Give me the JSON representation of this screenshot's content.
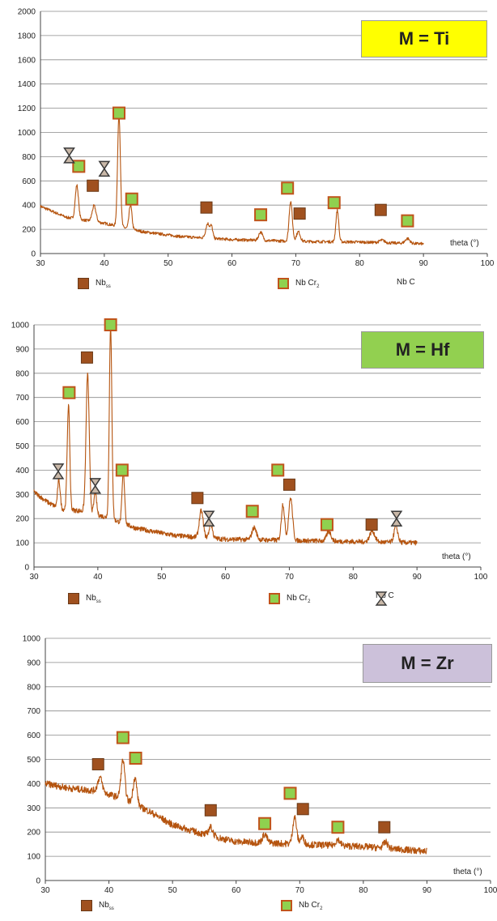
{
  "colors": {
    "trace": "#b5540f",
    "nb_square": "#a0511f",
    "nbcr2_fill": "#8fd14f",
    "nbcr2_border": "#c0541b",
    "nbc_marker": "#3a3a3a"
  },
  "legend_labels": {
    "nb": "Nb",
    "nb_sub": "ss",
    "nbcr2": "Nb Cr",
    "nbcr2_sub": "2",
    "nbc": "Nb C"
  },
  "chart_data": [
    {
      "type": "line",
      "tag": "M = Ti",
      "tag_color": "#ffff00",
      "xlabel": "theta (°)",
      "xlim": [
        30,
        100
      ],
      "ylim": [
        0,
        2000
      ],
      "xticks": [
        30,
        40,
        50,
        60,
        70,
        80,
        90,
        100
      ],
      "yticks": [
        0,
        200,
        400,
        600,
        800,
        1000,
        1200,
        1400,
        1600,
        1800,
        2000
      ],
      "series": [
        {
          "start": 30,
          "end": 90,
          "noise": 12,
          "baseline": [
            [
              30,
              390
            ],
            [
              34,
              300
            ],
            [
              40,
              250
            ],
            [
              46,
              180
            ],
            [
              52,
              140
            ],
            [
              60,
              115
            ],
            [
              70,
              100
            ],
            [
              80,
              95
            ],
            [
              90,
              80
            ]
          ],
          "peaks": [
            [
              35.7,
              280,
              0.25
            ],
            [
              38.4,
              130,
              0.3
            ],
            [
              42.3,
              920,
              0.22
            ],
            [
              44.1,
              200,
              0.22
            ],
            [
              56.2,
              120,
              0.3
            ],
            [
              56.8,
              90,
              0.2
            ],
            [
              64.5,
              70,
              0.3
            ],
            [
              69.2,
              330,
              0.25
            ],
            [
              70.4,
              80,
              0.3
            ],
            [
              76.5,
              260,
              0.22
            ],
            [
              83.5,
              20,
              0.4
            ],
            [
              87.5,
              40,
              0.35
            ]
          ]
        }
      ],
      "markers": [
        {
          "phase": "nbcr2",
          "x": 42.3,
          "y": 1160
        },
        {
          "phase": "nbcr2",
          "x": 36.0,
          "y": 720
        },
        {
          "phase": "nbcr2",
          "x": 44.3,
          "y": 450
        },
        {
          "phase": "nbcr2",
          "x": 64.5,
          "y": 320
        },
        {
          "phase": "nbcr2",
          "x": 68.7,
          "y": 540
        },
        {
          "phase": "nbcr2",
          "x": 76.0,
          "y": 420
        },
        {
          "phase": "nbcr2",
          "x": 87.5,
          "y": 270
        },
        {
          "phase": "nb",
          "x": 38.2,
          "y": 560
        },
        {
          "phase": "nb",
          "x": 56.0,
          "y": 380
        },
        {
          "phase": "nb",
          "x": 70.6,
          "y": 330
        },
        {
          "phase": "nb",
          "x": 83.3,
          "y": 360
        },
        {
          "phase": "nbc",
          "x": 34.5,
          "y": 810
        },
        {
          "phase": "nbc",
          "x": 40.0,
          "y": 700
        }
      ]
    },
    {
      "type": "line",
      "tag": "M = Hf",
      "tag_color": "#92d050",
      "xlabel": "theta (°)",
      "xlim": [
        30,
        100
      ],
      "ylim": [
        0,
        1000
      ],
      "xticks": [
        30,
        40,
        50,
        60,
        70,
        80,
        90,
        100
      ],
      "yticks": [
        0,
        100,
        200,
        300,
        400,
        500,
        600,
        700,
        800,
        900,
        1000
      ],
      "series": [
        {
          "start": 30,
          "end": 90,
          "noise": 10,
          "baseline": [
            [
              30,
              310
            ],
            [
              32,
              270
            ],
            [
              34,
              240
            ],
            [
              38,
              230
            ],
            [
              42,
              200
            ],
            [
              46,
              160
            ],
            [
              52,
              130
            ],
            [
              60,
              115
            ],
            [
              70,
              110
            ],
            [
              80,
              105
            ],
            [
              90,
              100
            ]
          ],
          "peaks": [
            [
              33.9,
              120,
              0.2
            ],
            [
              35.4,
              430,
              0.2
            ],
            [
              38.4,
              570,
              0.25
            ],
            [
              39.6,
              90,
              0.2
            ],
            [
              42.0,
              790,
              0.2
            ],
            [
              44.0,
              210,
              0.2
            ],
            [
              56.2,
              110,
              0.3
            ],
            [
              57.7,
              60,
              0.25
            ],
            [
              64.5,
              50,
              0.35
            ],
            [
              69.0,
              150,
              0.25
            ],
            [
              70.2,
              175,
              0.3
            ],
            [
              76.2,
              40,
              0.35
            ],
            [
              83.0,
              45,
              0.4
            ],
            [
              86.7,
              65,
              0.3
            ]
          ]
        }
      ],
      "markers": [
        {
          "phase": "nbcr2",
          "x": 42.0,
          "y": 1000
        },
        {
          "phase": "nbcr2",
          "x": 35.5,
          "y": 720
        },
        {
          "phase": "nbcr2",
          "x": 43.8,
          "y": 400
        },
        {
          "phase": "nbcr2",
          "x": 64.2,
          "y": 230
        },
        {
          "phase": "nbcr2",
          "x": 68.2,
          "y": 400
        },
        {
          "phase": "nbcr2",
          "x": 75.9,
          "y": 175
        },
        {
          "phase": "nb",
          "x": 38.3,
          "y": 865
        },
        {
          "phase": "nb",
          "x": 55.6,
          "y": 285
        },
        {
          "phase": "nb",
          "x": 70.0,
          "y": 340
        },
        {
          "phase": "nb",
          "x": 82.9,
          "y": 175
        },
        {
          "phase": "nbc",
          "x": 33.8,
          "y": 395
        },
        {
          "phase": "nbc",
          "x": 39.6,
          "y": 335
        },
        {
          "phase": "nbc",
          "x": 57.4,
          "y": 200
        },
        {
          "phase": "nbc",
          "x": 86.8,
          "y": 200
        }
      ]
    },
    {
      "type": "line",
      "tag": "M = Zr",
      "tag_color": "#ccc1da",
      "xlabel": "theta (°)",
      "xlim": [
        30,
        100
      ],
      "ylim": [
        0,
        1000
      ],
      "xticks": [
        30,
        40,
        50,
        60,
        70,
        80,
        90,
        100
      ],
      "yticks": [
        0,
        100,
        200,
        300,
        400,
        500,
        600,
        700,
        800,
        900,
        1000
      ],
      "series": [
        {
          "start": 30,
          "end": 90,
          "noise": 14,
          "baseline": [
            [
              30,
              400
            ],
            [
              34,
              380
            ],
            [
              38,
              370
            ],
            [
              42,
              340
            ],
            [
              46,
              290
            ],
            [
              50,
              230
            ],
            [
              55,
              190
            ],
            [
              60,
              160
            ],
            [
              70,
              150
            ],
            [
              80,
              140
            ],
            [
              90,
              120
            ]
          ],
          "peaks": [
            [
              38.6,
              60,
              0.35
            ],
            [
              42.2,
              160,
              0.3
            ],
            [
              44.1,
              110,
              0.3
            ],
            [
              56.0,
              35,
              0.35
            ],
            [
              64.5,
              35,
              0.35
            ],
            [
              69.2,
              110,
              0.3
            ],
            [
              70.4,
              30,
              0.3
            ],
            [
              76.0,
              25,
              0.35
            ],
            [
              83.5,
              25,
              0.35
            ]
          ]
        }
      ],
      "markers": [
        {
          "phase": "nbcr2",
          "x": 42.2,
          "y": 590
        },
        {
          "phase": "nbcr2",
          "x": 44.2,
          "y": 505
        },
        {
          "phase": "nbcr2",
          "x": 64.5,
          "y": 235
        },
        {
          "phase": "nbcr2",
          "x": 68.5,
          "y": 360
        },
        {
          "phase": "nbcr2",
          "x": 76.0,
          "y": 220
        },
        {
          "phase": "nb",
          "x": 38.3,
          "y": 480
        },
        {
          "phase": "nb",
          "x": 56.0,
          "y": 290
        },
        {
          "phase": "nb",
          "x": 70.5,
          "y": 295
        },
        {
          "phase": "nb",
          "x": 83.3,
          "y": 220
        }
      ]
    }
  ]
}
